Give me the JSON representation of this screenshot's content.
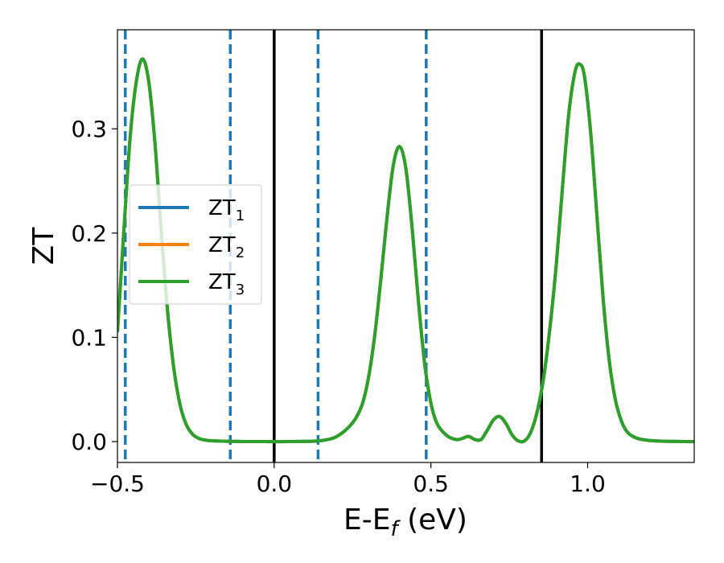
{
  "chart_data": {
    "type": "line",
    "title": "",
    "xlabel": {
      "main": "E-E",
      "sub": "f",
      "unit": " (eV)"
    },
    "ylabel": "ZT",
    "xlim": [
      -0.5,
      1.34
    ],
    "ylim": [
      -0.02,
      0.395
    ],
    "x_ticks": [
      -0.5,
      0.0,
      0.5,
      1.0
    ],
    "x_tick_labels": [
      "−0.5",
      "0.0",
      "0.5",
      "1.0"
    ],
    "y_ticks": [
      0.0,
      0.1,
      0.2,
      0.3
    ],
    "y_tick_labels": [
      "0.0",
      "0.1",
      "0.2",
      "0.3"
    ],
    "grid": false,
    "legend": {
      "placement": "center-left",
      "entries": [
        {
          "base": "ZT",
          "sub": "1",
          "color": "#1f77b4"
        },
        {
          "base": "ZT",
          "sub": "2",
          "color": "#ff7f0e"
        },
        {
          "base": "ZT",
          "sub": "3",
          "color": "#2ca02c"
        }
      ]
    },
    "vertical_lines": {
      "dashed": {
        "color": "#1f77b4",
        "x": [
          -0.475,
          -0.14,
          0.14,
          0.485
        ]
      },
      "solid": {
        "color": "#000000",
        "x": [
          0.0,
          0.853
        ]
      }
    },
    "series": [
      {
        "name": "ZT₁",
        "color": "#1f77b4",
        "note": "identical curve, hidden beneath ZT₃"
      },
      {
        "name": "ZT₂",
        "color": "#ff7f0e",
        "note": "identical curve, hidden beneath ZT₃"
      },
      {
        "name": "ZT₃",
        "color": "#2ca02c",
        "x": [
          -0.5,
          -0.48,
          -0.46,
          -0.44,
          -0.42,
          -0.4,
          -0.38,
          -0.36,
          -0.34,
          -0.32,
          -0.3,
          -0.28,
          -0.26,
          -0.24,
          -0.22,
          -0.2,
          -0.15,
          -0.1,
          0.0,
          0.1,
          0.15,
          0.2,
          0.25,
          0.28,
          0.3,
          0.32,
          0.34,
          0.36,
          0.38,
          0.4,
          0.42,
          0.44,
          0.46,
          0.48,
          0.5,
          0.52,
          0.55,
          0.58,
          0.6,
          0.62,
          0.64,
          0.66,
          0.68,
          0.7,
          0.72,
          0.74,
          0.76,
          0.78,
          0.8,
          0.82,
          0.84,
          0.86,
          0.88,
          0.9,
          0.92,
          0.94,
          0.96,
          0.975,
          0.99,
          1.01,
          1.03,
          1.05,
          1.07,
          1.09,
          1.11,
          1.13,
          1.16,
          1.2,
          1.25,
          1.3,
          1.34
        ],
        "values": [
          0.105,
          0.2,
          0.29,
          0.345,
          0.367,
          0.345,
          0.285,
          0.2,
          0.125,
          0.07,
          0.035,
          0.016,
          0.007,
          0.003,
          0.0015,
          0.0008,
          0.0003,
          0.0001,
          0.0,
          0.0002,
          0.001,
          0.005,
          0.018,
          0.035,
          0.06,
          0.1,
          0.155,
          0.215,
          0.265,
          0.283,
          0.262,
          0.205,
          0.135,
          0.075,
          0.037,
          0.017,
          0.006,
          0.002,
          0.003,
          0.005,
          0.002,
          0.002,
          0.011,
          0.021,
          0.024,
          0.017,
          0.006,
          0.0005,
          0.001,
          0.01,
          0.03,
          0.062,
          0.11,
          0.17,
          0.245,
          0.315,
          0.355,
          0.362,
          0.35,
          0.295,
          0.215,
          0.135,
          0.075,
          0.038,
          0.018,
          0.008,
          0.003,
          0.001,
          0.0003,
          0.0001,
          0.0
        ]
      }
    ]
  }
}
